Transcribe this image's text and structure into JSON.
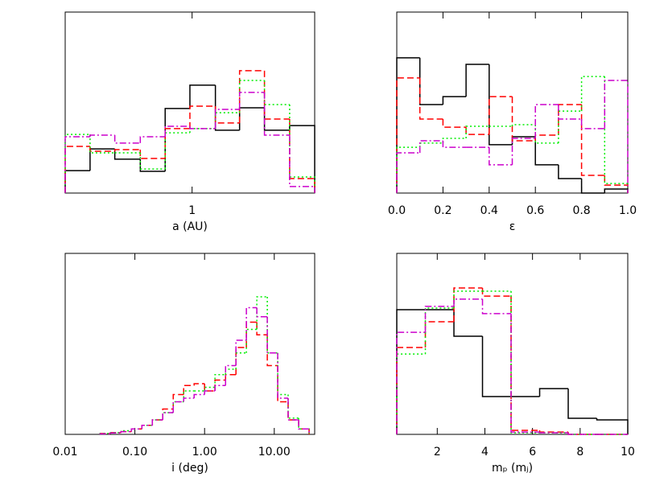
{
  "chart_data": [
    {
      "type": "histogram",
      "xlabel": "a (AU)",
      "log_x": true,
      "xlim": [
        0.31,
        3.1
      ],
      "ylim": [
        0,
        100
      ],
      "xticks": [
        1
      ],
      "bins": [
        0.31,
        0.39,
        0.49,
        0.62,
        0.78,
        0.98,
        1.24,
        1.55,
        1.95,
        2.46,
        3.1
      ],
      "series": [
        {
          "color": "#000000",
          "style": "solid",
          "values": [
            12.4,
            24.4,
            18.7,
            12,
            46.7,
            59.6,
            34.7,
            47.1,
            34.7,
            37.3
          ]
        },
        {
          "color": "#ff0000",
          "style": "dashed",
          "values": [
            25.8,
            23.1,
            24,
            19.1,
            35.6,
            48,
            38.7,
            67.6,
            40.9,
            8
          ]
        },
        {
          "color": "#00ee00",
          "style": "dotted",
          "values": [
            32.4,
            22.2,
            22.2,
            13.3,
            33.3,
            35.6,
            44.4,
            62.2,
            48.9,
            8.9
          ]
        },
        {
          "color": "#cc00cc",
          "style": "dashdot",
          "values": [
            31.1,
            32,
            27.6,
            31.1,
            36.9,
            35.6,
            46.2,
            55.6,
            32,
            3.6
          ]
        }
      ]
    },
    {
      "type": "histogram",
      "xlabel": "ε",
      "log_x": false,
      "xlim": [
        0,
        1
      ],
      "ylim": [
        0,
        100
      ],
      "xticks": [
        {
          "value": 0,
          "label": "0.0"
        },
        0.2,
        0.4,
        0.6,
        0.8,
        {
          "value": 1,
          "label": "1.0"
        }
      ],
      "bins": [
        0,
        0.1,
        0.2,
        0.3,
        0.4,
        0.5,
        0.6,
        0.7,
        0.8,
        0.9,
        1
      ],
      "series": [
        {
          "color": "#000000",
          "style": "solid",
          "values": [
            74.7,
            48.9,
            53.3,
            71.1,
            26.7,
            31.1,
            15.6,
            8,
            0,
            2.2
          ]
        },
        {
          "color": "#ff0000",
          "style": "dashed",
          "values": [
            63.6,
            40.9,
            36.4,
            32.4,
            53.3,
            28.9,
            32,
            48.9,
            9.8,
            4.4
          ]
        },
        {
          "color": "#00ee00",
          "style": "dotted",
          "values": [
            25.3,
            27.6,
            30.2,
            36.9,
            36.9,
            37.8,
            27.6,
            45.3,
            64.4,
            5.3
          ]
        },
        {
          "color": "#cc00cc",
          "style": "dashdot",
          "values": [
            22.2,
            28.9,
            25.3,
            25.3,
            15.6,
            30.2,
            48.9,
            40.9,
            35.6,
            62.2
          ]
        }
      ]
    },
    {
      "type": "histogram",
      "xlabel": "i (deg)",
      "log_x": true,
      "xlim": [
        0.01,
        38
      ],
      "ylim": [
        0,
        100
      ],
      "xticks": [
        {
          "value": 0.01,
          "label": "0.01"
        },
        {
          "value": 0.1,
          "label": "0.10"
        },
        {
          "value": 1,
          "label": "1.00"
        },
        {
          "value": 10,
          "label": "10.00"
        }
      ],
      "bins": [
        0.0316,
        0.0447,
        0.0631,
        0.0891,
        0.126,
        0.178,
        0.251,
        0.355,
        0.501,
        0.708,
        1,
        1.41,
        2,
        2.82,
        3.98,
        5.62,
        7.94,
        11.2,
        15.8,
        22.4,
        31.6
      ],
      "series": [
        {
          "color": "#ff0000",
          "style": "dashed",
          "values": [
            0.5,
            1,
            1.5,
            3,
            5,
            8,
            14,
            22,
            27,
            28,
            24,
            30,
            33,
            48,
            62,
            55,
            38,
            18,
            8,
            3
          ]
        },
        {
          "color": "#00ee00",
          "style": "dotted",
          "values": [
            0.5,
            1,
            2,
            3,
            5,
            8,
            12,
            18,
            24,
            24,
            26,
            33,
            36,
            45,
            58,
            76,
            45,
            22,
            9,
            3
          ]
        },
        {
          "color": "#cc00cc",
          "style": "dashdot",
          "values": [
            0.3,
            0.8,
            1.5,
            3,
            5,
            8,
            12,
            18,
            20,
            22,
            24,
            27,
            38,
            52,
            70,
            65,
            45,
            20,
            8,
            3
          ]
        }
      ]
    },
    {
      "type": "histogram",
      "xlabel": "mₚ (mⱼ)",
      "log_x": false,
      "xlim": [
        0.3,
        10
      ],
      "ylim": [
        0,
        100
      ],
      "xticks": [
        2,
        4,
        6,
        8,
        10
      ],
      "bins": [
        0.3,
        1.5,
        2.7,
        3.9,
        5.1,
        6.3,
        7.5,
        8.7,
        10
      ],
      "series": [
        {
          "color": "#000000",
          "style": "solid",
          "values": [
            68.9,
            68.9,
            54.2,
            20.9,
            20.9,
            25.3,
            8.9,
            8
          ]
        },
        {
          "color": "#ff0000",
          "style": "dashed",
          "values": [
            48,
            62.2,
            80.9,
            76.4,
            2.2,
            1.3,
            0,
            0
          ]
        },
        {
          "color": "#00ee00",
          "style": "dotted",
          "values": [
            44.4,
            69.8,
            79.1,
            79.1,
            0.9,
            0.9,
            0,
            0
          ]
        },
        {
          "color": "#cc00cc",
          "style": "dashdot",
          "values": [
            56.4,
            70.7,
            74.7,
            66.7,
            1.3,
            0.9,
            0,
            0
          ]
        }
      ]
    }
  ]
}
